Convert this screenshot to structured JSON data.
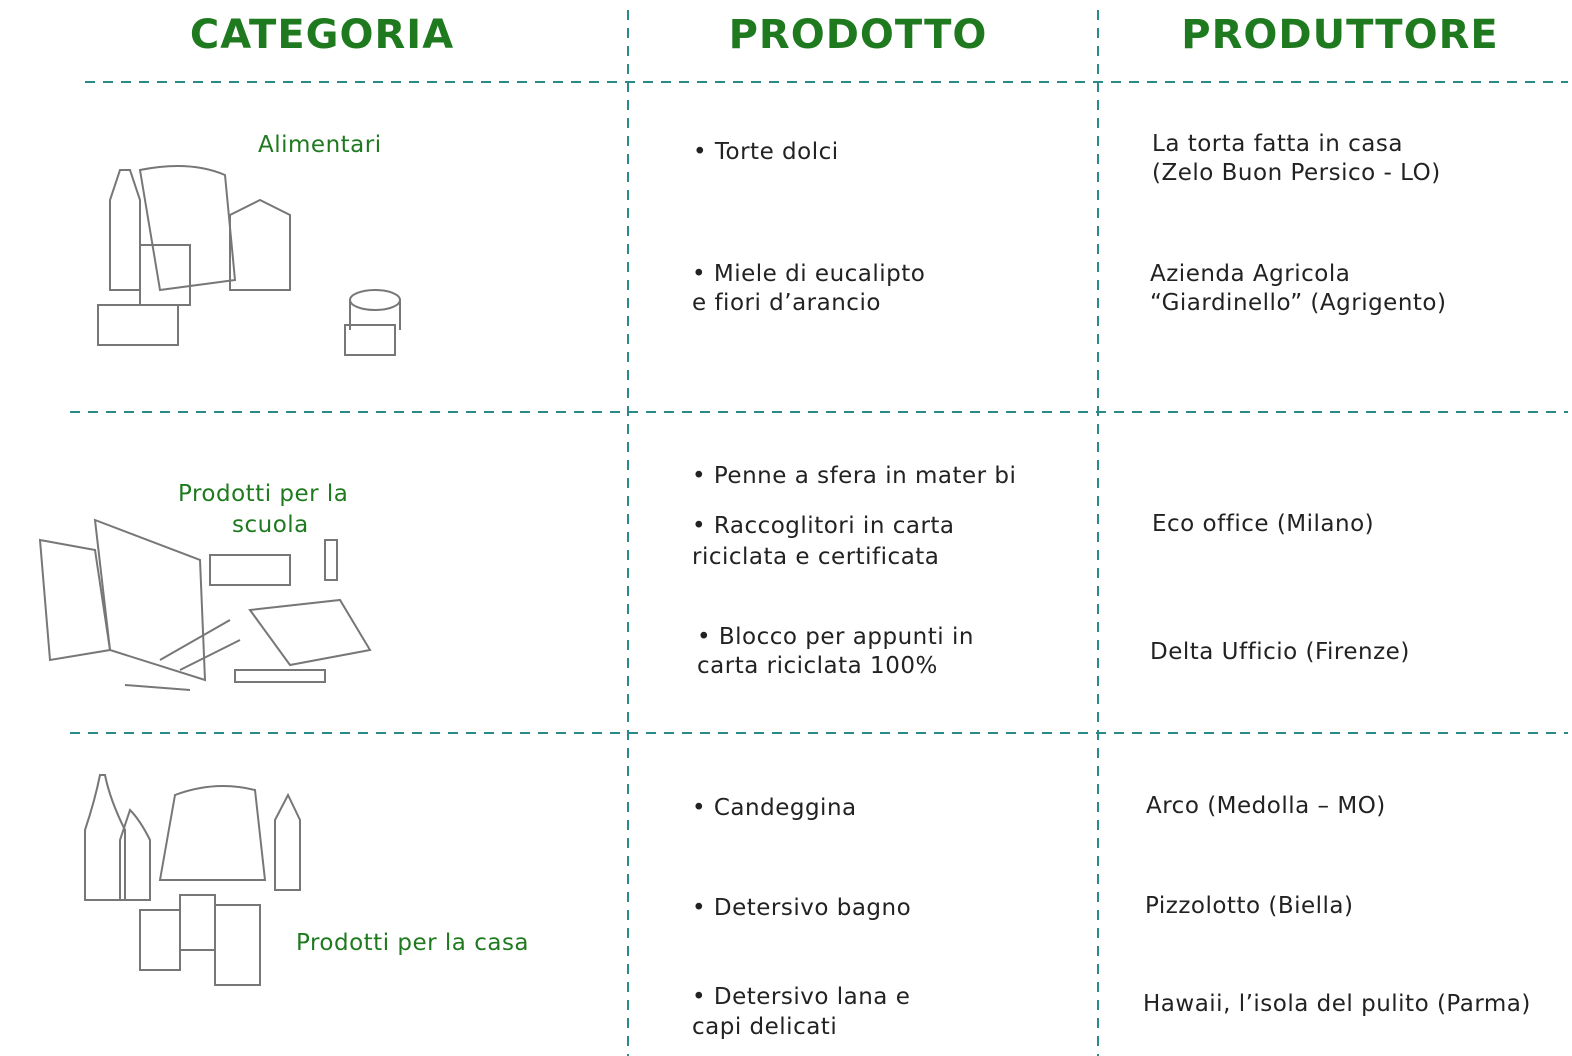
{
  "header": {
    "columns": [
      "CATEGORIA",
      "PRODOTTO",
      "PRODUTTORE"
    ]
  },
  "rows": [
    {
      "category": [
        "Alimentari"
      ],
      "products": [
        [
          "• Torte dolci"
        ],
        [
          "• Miele di eucalipto",
          "e fiori d’arancio"
        ]
      ],
      "producers": [
        [
          "La torta fatta in casa",
          "(Zelo Buon Persico  - LO)"
        ],
        [
          "Azienda Agricola",
          "“Giardinello” (Agrigento)"
        ]
      ]
    },
    {
      "category": [
        "Prodotti per la",
        "scuola"
      ],
      "products": [
        [
          "• Penne a sfera in mater bi"
        ],
        [
          "• Raccoglitori in carta",
          "riciclata e certificata"
        ],
        [
          "• Blocco per appunti in",
          "carta riciclata 100%"
        ]
      ],
      "producers": [
        [
          "Eco office (Milano)"
        ],
        [
          "Delta Ufficio (Firenze)"
        ]
      ]
    },
    {
      "category": [
        "Prodotti per la casa"
      ],
      "products": [
        [
          "• Candeggina"
        ],
        [
          "• Detersivo bagno"
        ],
        [
          "• Detersivo lana e",
          "capi delicati"
        ]
      ],
      "producers": [
        [
          "Arco (Medolla – MO)"
        ],
        [
          "Pizzolotto  (Biella)"
        ],
        [
          "Hawaii, l’isola del pulito (Parma)"
        ]
      ]
    }
  ]
}
